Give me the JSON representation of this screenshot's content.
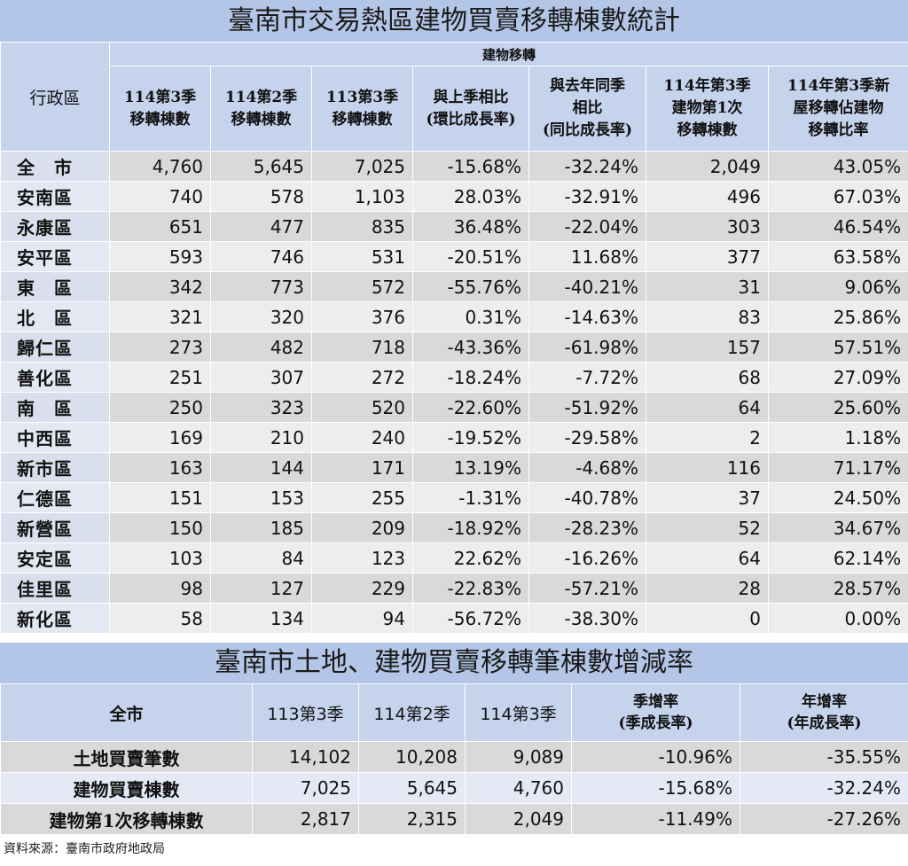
{
  "table1": {
    "title": "臺南市交易熱區建物買賣移轉棟數統計",
    "group_header": "建物移轉",
    "area_header": "行政區",
    "headers": [
      [
        "114第3季",
        "移轉棟數"
      ],
      [
        "114第2季",
        "移轉棟數"
      ],
      [
        "113第3季",
        "移轉棟數"
      ],
      [
        "與上季相比",
        "(環比成長率)"
      ],
      [
        "與去年同季",
        "相比",
        "(同比成長率)"
      ],
      [
        "114年第3季",
        "建物第1次",
        "移轉棟數"
      ],
      [
        "114年第3季新",
        "屋移轉佔建物",
        "移轉比率"
      ]
    ],
    "rows": [
      [
        "全　市",
        "4,760",
        "5,645",
        "7,025",
        "-15.68%",
        "-32.24%",
        "2,049",
        "43.05%"
      ],
      [
        "安南區",
        "740",
        "578",
        "1,103",
        "28.03%",
        "-32.91%",
        "496",
        "67.03%"
      ],
      [
        "永康區",
        "651",
        "477",
        "835",
        "36.48%",
        "-22.04%",
        "303",
        "46.54%"
      ],
      [
        "安平區",
        "593",
        "746",
        "531",
        "-20.51%",
        "11.68%",
        "377",
        "63.58%"
      ],
      [
        "東　區",
        "342",
        "773",
        "572",
        "-55.76%",
        "-40.21%",
        "31",
        "9.06%"
      ],
      [
        "北　區",
        "321",
        "320",
        "376",
        "0.31%",
        "-14.63%",
        "83",
        "25.86%"
      ],
      [
        "歸仁區",
        "273",
        "482",
        "718",
        "-43.36%",
        "-61.98%",
        "157",
        "57.51%"
      ],
      [
        "善化區",
        "251",
        "307",
        "272",
        "-18.24%",
        "-7.72%",
        "68",
        "27.09%"
      ],
      [
        "南　區",
        "250",
        "323",
        "520",
        "-22.60%",
        "-51.92%",
        "64",
        "25.60%"
      ],
      [
        "中西區",
        "169",
        "210",
        "240",
        "-19.52%",
        "-29.58%",
        "2",
        "1.18%"
      ],
      [
        "新市區",
        "163",
        "144",
        "171",
        "13.19%",
        "-4.68%",
        "116",
        "71.17%"
      ],
      [
        "仁德區",
        "151",
        "153",
        "255",
        "-1.31%",
        "-40.78%",
        "37",
        "24.50%"
      ],
      [
        "新營區",
        "150",
        "185",
        "209",
        "-18.92%",
        "-28.23%",
        "52",
        "34.67%"
      ],
      [
        "安定區",
        "103",
        "84",
        "123",
        "22.62%",
        "-16.26%",
        "64",
        "62.14%"
      ],
      [
        "佳里區",
        "98",
        "127",
        "229",
        "-22.83%",
        "-57.21%",
        "28",
        "28.57%"
      ],
      [
        "新化區",
        "58",
        "134",
        "94",
        "-56.72%",
        "-38.30%",
        "0",
        "0.00%"
      ]
    ]
  },
  "table2": {
    "title": "臺南市土地、建物買賣移轉筆棟數增減率",
    "headers": [
      "全市",
      "113第3季",
      "114第2季",
      "114第3季",
      [
        "季增率",
        "(季成長率)"
      ],
      [
        "年增率",
        "(年成長率)"
      ]
    ],
    "rows": [
      [
        "土地買賣筆數",
        "14,102",
        "10,208",
        "9,089",
        "-10.96%",
        "-35.55%"
      ],
      [
        "建物買賣棟數",
        "7,025",
        "5,645",
        "4,760",
        "-15.68%",
        "-32.24%"
      ],
      [
        "建物第1次移轉棟數",
        "2,817",
        "2,315",
        "2,049",
        "-11.49%",
        "-27.26%"
      ]
    ]
  },
  "source": "資料來源：臺南市政府地政局"
}
